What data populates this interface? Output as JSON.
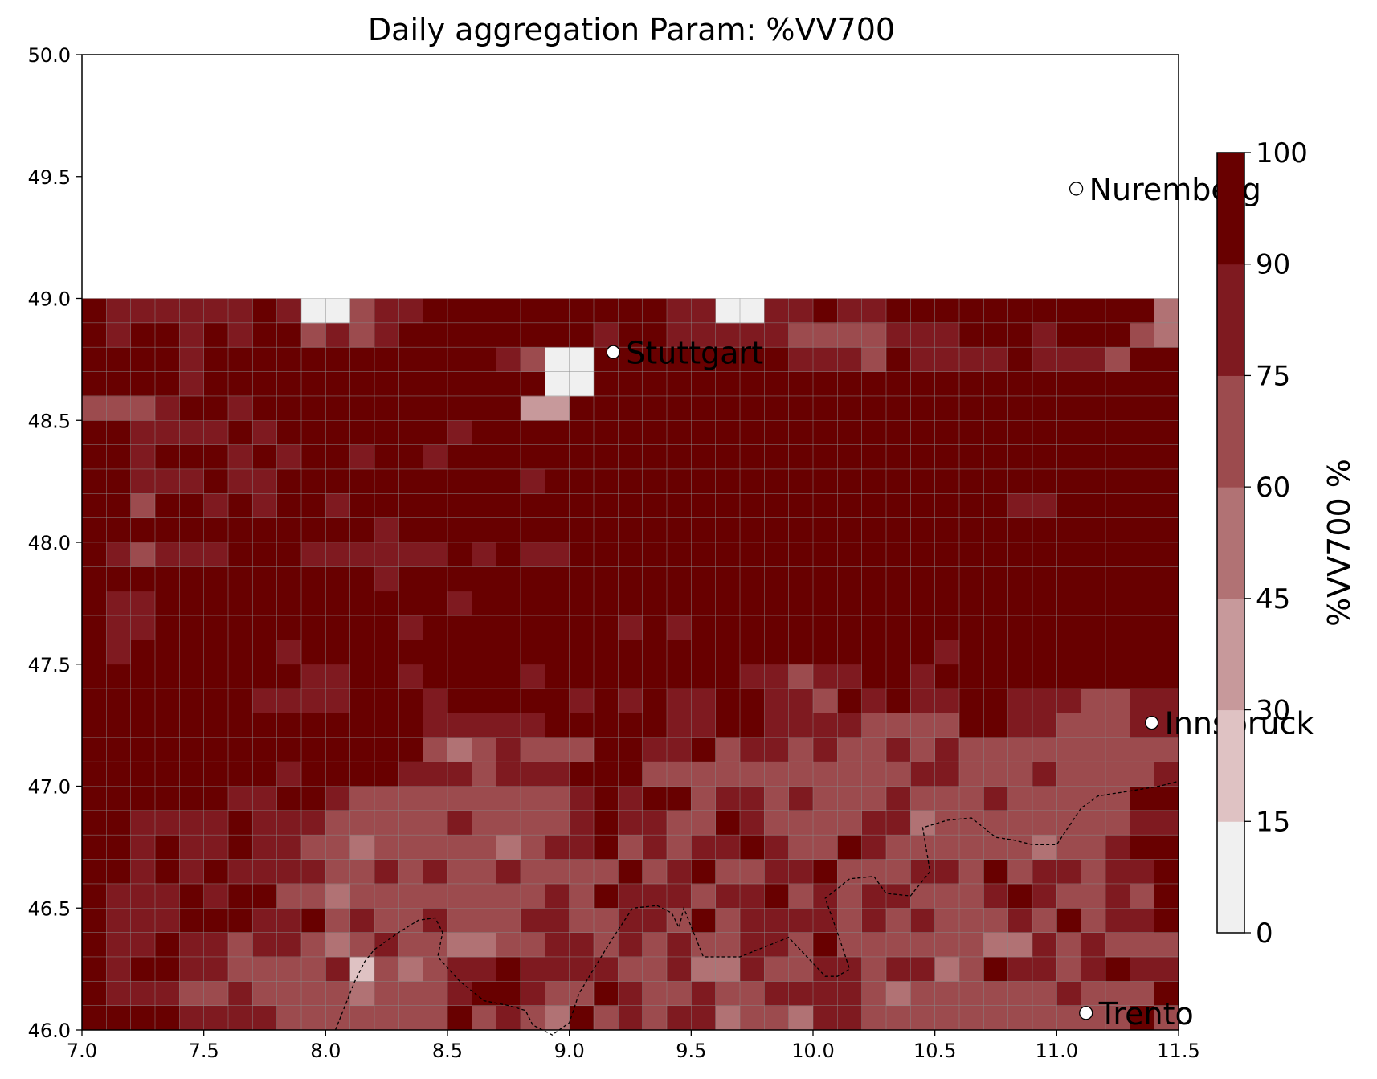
{
  "chart_data": {
    "type": "heatmap",
    "title": "Daily aggregation Param: %VV700",
    "xlabel": "",
    "ylabel": "",
    "xlim": [
      7.0,
      11.5
    ],
    "ylim": [
      46.0,
      50.0
    ],
    "x_ticks": [
      "7.0",
      "7.5",
      "8.0",
      "8.5",
      "9.0",
      "9.5",
      "10.0",
      "10.5",
      "11.0",
      "11.5"
    ],
    "y_ticks": [
      "46.0",
      "46.5",
      "47.0",
      "47.5",
      "48.0",
      "48.5",
      "49.0",
      "49.5",
      "50.0"
    ],
    "grid": {
      "lon_start": 7.0,
      "lat_start": 46.0,
      "cell_deg": 0.1,
      "cols": 45,
      "rows": 30,
      "note_rows": "rows listed from south (46.0) to north (49.0); value = class index 0..6",
      "rows_classes": [
        "666655554444444645436454553443554444444444464",
        "655544544443444566544654454455554344444454446",
        "656655444451434556555544533544554553465545655",
        "655655455434544334455454544554644444433545444",
        "655566655645445444554455464555545454445464556",
        "655565664434444444454655545564545544456544546",
        "665656555544545445444464564455644455464554556",
        "665655655443444443455645455654465444444344566",
        "665555655544444544445655446544445534444444455",
        "666666556654444444445656645545444544454444466",
        "666666665666655545556664444444444455444544445",
        "666666666666664345444665564554544545444444444",
        "666666666666665555566666556655554444665544455",
        "666666655556665666665656556655465655665554455",
        "666666666556656666566666666554556656666666666",
        "656666665666666666666666666666666665666666666",
        "655666666666656666666656566666666666666666666",
        "655666666666666566666666666666666666666666666",
        "666666666666566666666666666666666666666666666",
        "654555666555555656556666666666666666666666666",
        "666666666666566666666666666666666666666666666",
        "664665656656666666666666666666666666665566666",
        "665556556666666666566666666666666666666666666",
        "665666565665665666666666666666666666666666666",
        "665555656666666566666666666666666666666666666",
        "444566566666666666226666666666666666666666666",
        "666656666666666666600666666666666666666666666",
        "666656666666666665400666666665554655556555466",
        "656656566454566666666566555554444555666566643",
        "655555565004556666666666550055655666666666663"
      ]
    },
    "colorbar": {
      "label": "%VV700  %",
      "ticks": [
        "0",
        "15",
        "30",
        "45",
        "60",
        "75",
        "90",
        "100"
      ],
      "colors": [
        "#f0f0f0",
        "#dfc2c3",
        "#c7999b",
        "#b17274",
        "#9c4b4e",
        "#7f1a20",
        "#680000"
      ]
    },
    "cities": [
      {
        "name": "Nuremberg",
        "lon": 11.08,
        "lat": 49.45
      },
      {
        "name": "Stuttgart",
        "lon": 9.18,
        "lat": 48.78
      },
      {
        "name": "Innsbruck",
        "lon": 11.39,
        "lat": 47.26
      },
      {
        "name": "Trento",
        "lon": 11.12,
        "lat": 46.07
      }
    ]
  }
}
